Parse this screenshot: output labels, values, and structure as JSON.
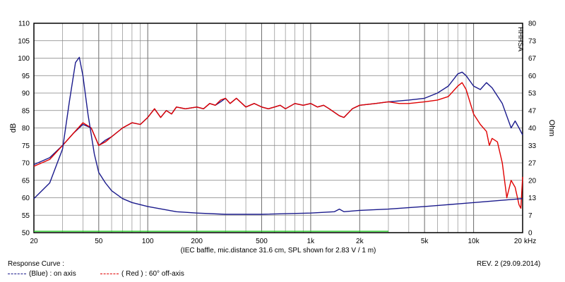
{
  "chart_data": {
    "type": "line",
    "xlabel": "",
    "x_unit": "kHz",
    "caption": "(IEC baffle, mic.distance 31.6 cm, SPL shown for 2.83 V / 1 m)",
    "ylabel_left": "dB",
    "ylabel_right": "Ohm",
    "xscale": "log",
    "xlim": [
      20,
      20000
    ],
    "ylim_left": [
      50,
      110
    ],
    "ylim_right": [
      0,
      80
    ],
    "grid": true,
    "x_tick_labels": [
      "20",
      "50",
      "100",
      "200",
      "500",
      "1k",
      "2k",
      "5k",
      "10k",
      "20"
    ],
    "y_left_ticks": [
      "50",
      "55",
      "60",
      "65",
      "70",
      "75",
      "80",
      "85",
      "90",
      "95",
      "100",
      "105",
      "110"
    ],
    "y_right_ticks": [
      "0",
      "7",
      "13",
      "20",
      "27",
      "33",
      "40",
      "47",
      "53",
      "60",
      "67",
      "73",
      "80"
    ],
    "watermark": "HHHSA",
    "series": [
      {
        "name": "on axis",
        "color": "#1a1a8c",
        "axis": "left",
        "points": [
          [
            20,
            69.5
          ],
          [
            25,
            71.5
          ],
          [
            30,
            75
          ],
          [
            35,
            78.5
          ],
          [
            40,
            81
          ],
          [
            45,
            80
          ],
          [
            50,
            75
          ],
          [
            55,
            76.5
          ],
          [
            60,
            77.5
          ],
          [
            70,
            80
          ],
          [
            80,
            81.5
          ],
          [
            90,
            81
          ],
          [
            100,
            83
          ],
          [
            110,
            85.5
          ],
          [
            120,
            83
          ],
          [
            130,
            85
          ],
          [
            140,
            84
          ],
          [
            150,
            86
          ],
          [
            170,
            85.5
          ],
          [
            200,
            86
          ],
          [
            220,
            85.5
          ],
          [
            240,
            87
          ],
          [
            260,
            86.5
          ],
          [
            280,
            87.5
          ],
          [
            300,
            88.5
          ],
          [
            320,
            87
          ],
          [
            350,
            88.5
          ],
          [
            400,
            86
          ],
          [
            450,
            87
          ],
          [
            500,
            86
          ],
          [
            550,
            85.5
          ],
          [
            600,
            86
          ],
          [
            650,
            86.5
          ],
          [
            700,
            85.5
          ],
          [
            800,
            87
          ],
          [
            900,
            86.5
          ],
          [
            1000,
            87
          ],
          [
            1100,
            86
          ],
          [
            1200,
            86.5
          ],
          [
            1300,
            85.5
          ],
          [
            1500,
            83.5
          ],
          [
            1600,
            83
          ],
          [
            1800,
            85.5
          ],
          [
            2000,
            86.5
          ],
          [
            2500,
            87
          ],
          [
            3000,
            87.5
          ],
          [
            4000,
            88
          ],
          [
            5000,
            88.5
          ],
          [
            6000,
            90
          ],
          [
            7000,
            92
          ],
          [
            8000,
            95.5
          ],
          [
            8500,
            96
          ],
          [
            9000,
            95
          ],
          [
            10000,
            92
          ],
          [
            11000,
            91
          ],
          [
            12000,
            93
          ],
          [
            13000,
            91.5
          ],
          [
            15000,
            87
          ],
          [
            17000,
            80
          ],
          [
            18000,
            82
          ],
          [
            19000,
            80
          ],
          [
            20000,
            78
          ]
        ]
      },
      {
        "name": "60° off-axis",
        "color": "#e00000",
        "axis": "left",
        "points": [
          [
            20,
            69
          ],
          [
            25,
            71
          ],
          [
            30,
            75
          ],
          [
            35,
            78.5
          ],
          [
            40,
            81.5
          ],
          [
            45,
            80
          ],
          [
            50,
            75
          ],
          [
            55,
            76
          ],
          [
            60,
            77.5
          ],
          [
            70,
            80
          ],
          [
            80,
            81.5
          ],
          [
            90,
            81
          ],
          [
            100,
            83
          ],
          [
            110,
            85.5
          ],
          [
            120,
            83
          ],
          [
            130,
            85
          ],
          [
            140,
            84
          ],
          [
            150,
            86
          ],
          [
            170,
            85.5
          ],
          [
            200,
            86
          ],
          [
            220,
            85.5
          ],
          [
            240,
            87
          ],
          [
            260,
            86.5
          ],
          [
            280,
            88
          ],
          [
            300,
            88.5
          ],
          [
            320,
            87
          ],
          [
            350,
            88.5
          ],
          [
            400,
            86
          ],
          [
            450,
            87
          ],
          [
            500,
            86
          ],
          [
            550,
            85.5
          ],
          [
            600,
            86
          ],
          [
            650,
            86.5
          ],
          [
            700,
            85.5
          ],
          [
            800,
            87
          ],
          [
            900,
            86.5
          ],
          [
            1000,
            87
          ],
          [
            1100,
            86
          ],
          [
            1200,
            86.5
          ],
          [
            1300,
            85.5
          ],
          [
            1500,
            83.5
          ],
          [
            1600,
            83
          ],
          [
            1800,
            85.5
          ],
          [
            2000,
            86.5
          ],
          [
            2500,
            87
          ],
          [
            3000,
            87.5
          ],
          [
            3500,
            87
          ],
          [
            4000,
            87
          ],
          [
            5000,
            87.5
          ],
          [
            6000,
            88
          ],
          [
            7000,
            89
          ],
          [
            8000,
            92
          ],
          [
            8500,
            93
          ],
          [
            9000,
            91
          ],
          [
            10000,
            84
          ],
          [
            11000,
            81
          ],
          [
            12000,
            79
          ],
          [
            12500,
            75
          ],
          [
            13000,
            77
          ],
          [
            14000,
            76
          ],
          [
            15000,
            70
          ],
          [
            16000,
            60
          ],
          [
            17000,
            65
          ],
          [
            18000,
            63
          ],
          [
            19000,
            58
          ],
          [
            19500,
            57
          ],
          [
            20000,
            66
          ]
        ]
      },
      {
        "name": "impedance",
        "color": "#1a1a8c",
        "axis": "right",
        "points": [
          [
            20,
            13
          ],
          [
            25,
            19
          ],
          [
            30,
            32
          ],
          [
            33,
            50
          ],
          [
            36,
            65
          ],
          [
            38,
            67
          ],
          [
            40,
            60
          ],
          [
            43,
            45
          ],
          [
            47,
            30
          ],
          [
            50,
            23
          ],
          [
            55,
            19
          ],
          [
            60,
            16
          ],
          [
            70,
            13
          ],
          [
            80,
            11.5
          ],
          [
            100,
            10
          ],
          [
            150,
            8
          ],
          [
            200,
            7.5
          ],
          [
            300,
            7
          ],
          [
            500,
            7
          ],
          [
            1000,
            7.5
          ],
          [
            1400,
            8
          ],
          [
            1500,
            9
          ],
          [
            1600,
            8
          ],
          [
            2000,
            8.5
          ],
          [
            3000,
            9
          ],
          [
            5000,
            10
          ],
          [
            8000,
            11
          ],
          [
            20000,
            13
          ]
        ]
      },
      {
        "name": "reference",
        "color": "#22c922",
        "axis": "right",
        "points": [
          [
            20,
            0.5
          ],
          [
            3000,
            0.5
          ]
        ]
      }
    ]
  },
  "footer": {
    "heading": "Response Curve :",
    "legend_blue": "(Blue)  : on axis",
    "legend_red": "( Red )  : 60° off-axis",
    "revision": "REV. 2 (29.09.2014)"
  }
}
